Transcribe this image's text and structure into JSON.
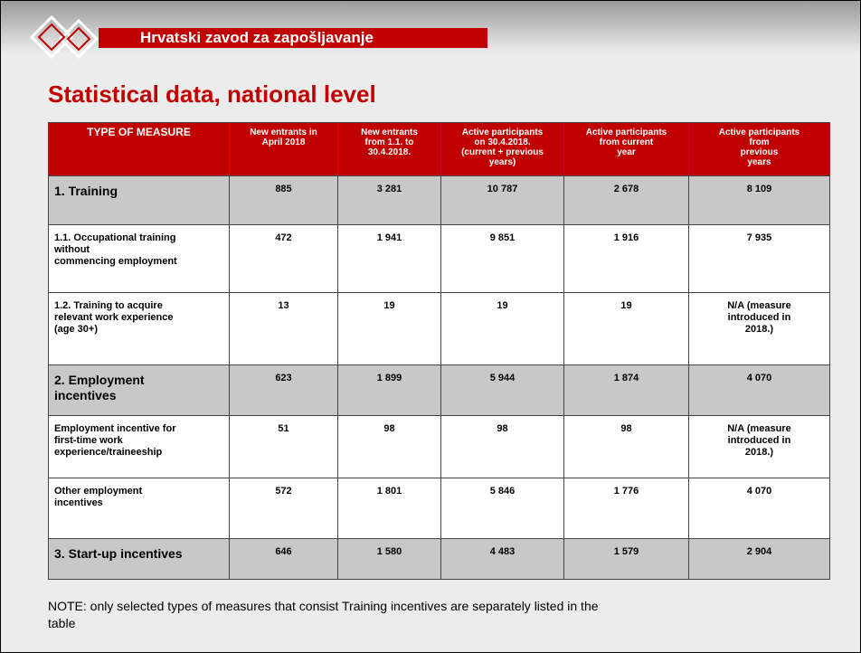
{
  "header": {
    "title": "Hrvatski zavod za zapošljavanje"
  },
  "title": "Statistical data, national level",
  "table": {
    "columns": [
      "TYPE OF MEASURE",
      "New entrants in\nApril 2018",
      "New entrants\nfrom 1.1. to\n30.4.2018.",
      "Active participants\non 30.4.2018.\n(current + previous\nyears)",
      "Active participants\nfrom current\nyear",
      "Active participants\nfrom\nprevious\nyears"
    ],
    "rows": [
      [
        "1. Training",
        "885",
        "3 281",
        "10 787",
        "2 678",
        "8 109"
      ],
      [
        "1.1. Occupational training\nwithout\ncommencing employment",
        "472",
        "1 941",
        "9 851",
        "1 916",
        "7 935"
      ],
      [
        "1.2. Training to acquire\nrelevant work experience\n(age 30+)",
        "13",
        "19",
        "19",
        "19",
        "N/A (measure\nintroduced in\n2018.)"
      ],
      [
        "2. Employment\nincentives",
        "623",
        "1 899",
        "5 944",
        "1 874",
        "4 070"
      ],
      [
        "Employment incentive for\nfirst-time work\nexperience/traineeship",
        "51",
        "98",
        "98",
        "98",
        "N/A (measure\nintroduced in\n2018.)"
      ],
      [
        "Other employment\nincentives",
        "572",
        "1 801",
        "5 846",
        "1 776",
        "4 070"
      ],
      [
        "3. Start-up incentives",
        "646",
        "1 580",
        "4 483",
        "1 579",
        "2 904"
      ]
    ]
  },
  "note": "NOTE: only selected types of measures that consist Training incentives are separately listed in the\ntable"
}
